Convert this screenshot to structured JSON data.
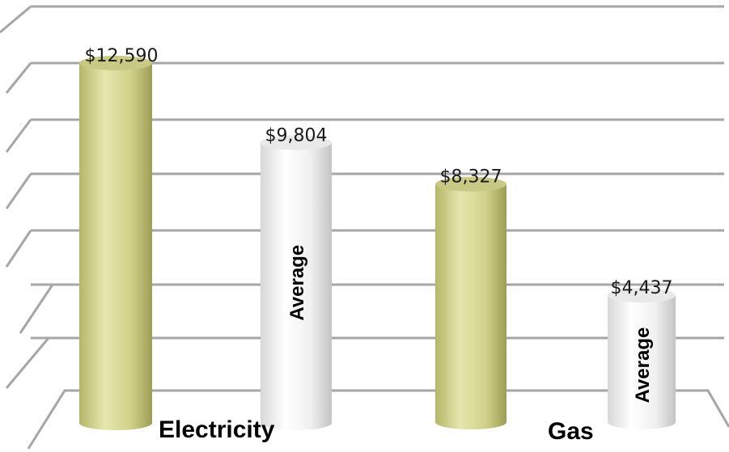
{
  "chart_data": {
    "type": "bar",
    "style": "3d-cylinder",
    "categories": [
      "Electricity",
      "Gas"
    ],
    "bars": [
      {
        "category": "Electricity",
        "label": "$12,590",
        "value": 12590,
        "color": "#d8d890",
        "inner_text": ""
      },
      {
        "category": "Electricity",
        "label": "$9,804",
        "value": 9804,
        "color": "#f2f2f2",
        "inner_text": "Average"
      },
      {
        "category": "Gas",
        "label": "$8,327",
        "value": 8327,
        "color": "#c9c97a",
        "inner_text": ""
      },
      {
        "category": "Gas",
        "label": "$4,437",
        "value": 4437,
        "color": "#f2f2f2",
        "inner_text": "Average"
      }
    ],
    "title": "",
    "xlabel": "",
    "ylabel": "",
    "ylim": [
      0,
      14000
    ],
    "gridlines": true,
    "legend": "none"
  }
}
